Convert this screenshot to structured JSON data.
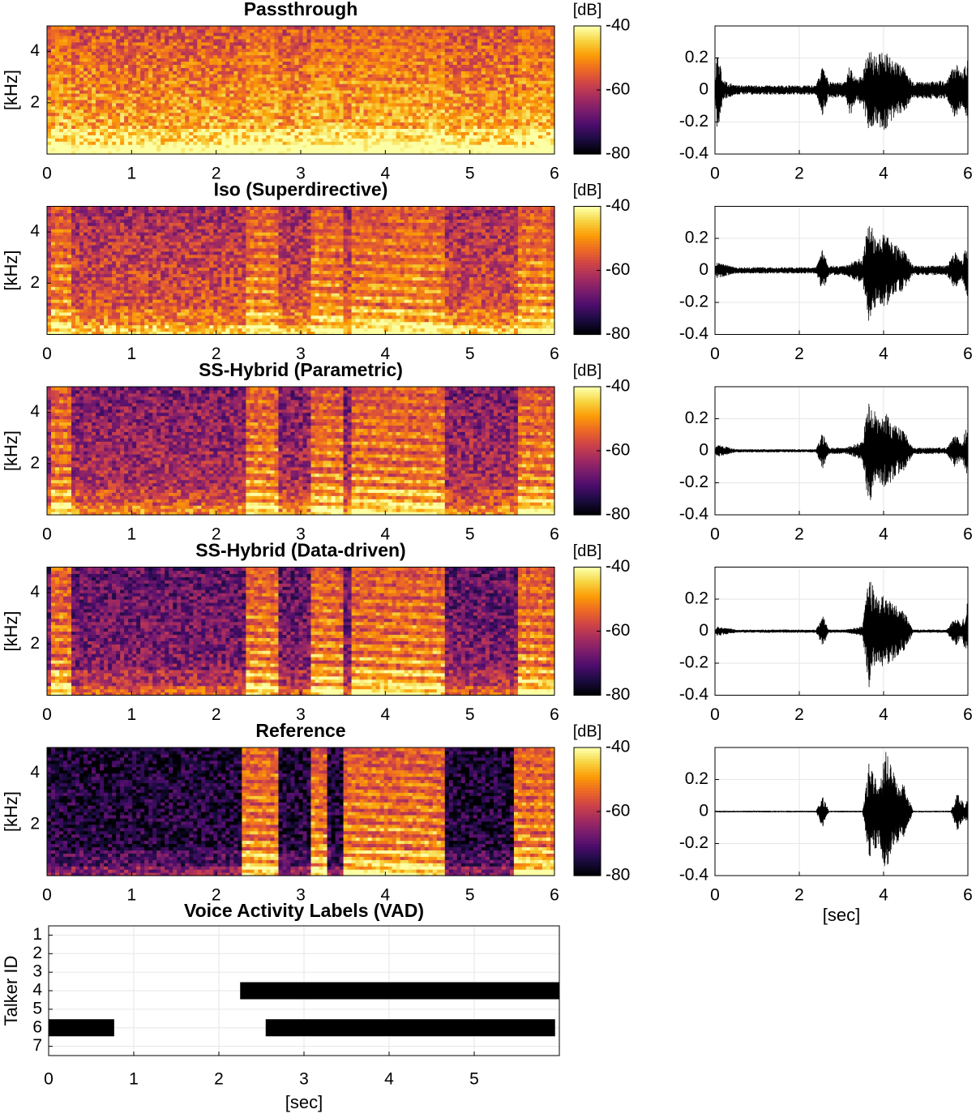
{
  "figure": {
    "colors": {
      "axis": "#000000",
      "grid": "#e6e6e6",
      "vad_bar": "#000000",
      "colormap": [
        "#000004",
        "#1b0c41",
        "#4a0c6b",
        "#781c6d",
        "#a52c60",
        "#cf4446",
        "#ed6925",
        "#fb9b06",
        "#f7d13d",
        "#fcffa4"
      ]
    },
    "x_label": "[sec]",
    "y_label_spec": "[kHz]",
    "colorbar_label": "[dB]"
  },
  "chart_data": [
    {
      "type": "heatmap",
      "title": "Passthrough",
      "xlim": [
        0,
        6
      ],
      "ylim": [
        0,
        5
      ],
      "xticks": [
        0,
        1,
        2,
        3,
        4,
        5,
        6
      ],
      "yticks": [
        2,
        4
      ],
      "xlabel": "",
      "ylabel": "[kHz]",
      "colorbar": {
        "label": "[dB]",
        "range": [
          -80,
          -40
        ],
        "ticks": [
          -40,
          -60,
          -80
        ]
      },
      "speech_segments": [
        [
          0.05,
          0.3
        ],
        [
          2.35,
          2.75
        ],
        [
          3.1,
          3.5
        ],
        [
          3.6,
          4.7
        ],
        [
          5.55,
          6.0
        ]
      ],
      "noise_level": 0.78
    },
    {
      "type": "line",
      "title": "",
      "xlim": [
        0,
        6
      ],
      "ylim": [
        -0.4,
        0.4
      ],
      "xticks": [
        0,
        2,
        4,
        6
      ],
      "yticks": [
        0.2,
        0,
        -0.2,
        -0.4
      ],
      "xlabel": "",
      "ylabel": "",
      "envelope": [
        [
          0.0,
          0.03
        ],
        [
          0.05,
          0.27
        ],
        [
          0.2,
          0.06
        ],
        [
          0.5,
          0.03
        ],
        [
          2.4,
          0.03
        ],
        [
          2.55,
          0.17
        ],
        [
          2.7,
          0.05
        ],
        [
          3.1,
          0.05
        ],
        [
          3.2,
          0.17
        ],
        [
          3.35,
          0.07
        ],
        [
          3.5,
          0.1
        ],
        [
          3.65,
          0.28
        ],
        [
          3.8,
          0.2
        ],
        [
          4.0,
          0.26
        ],
        [
          4.25,
          0.18
        ],
        [
          4.5,
          0.14
        ],
        [
          4.7,
          0.05
        ],
        [
          5.5,
          0.06
        ],
        [
          5.7,
          0.18
        ],
        [
          5.85,
          0.1
        ],
        [
          6.0,
          0.2
        ]
      ]
    },
    {
      "type": "heatmap",
      "title": "Iso (Superdirective)",
      "xlim": [
        0,
        6
      ],
      "ylim": [
        0,
        5
      ],
      "xticks": [
        0,
        1,
        2,
        3,
        4,
        5,
        6
      ],
      "yticks": [
        2,
        4
      ],
      "xlabel": "",
      "ylabel": "[kHz]",
      "colorbar": {
        "label": "[dB]",
        "range": [
          -80,
          -40
        ],
        "ticks": [
          -40,
          -60,
          -80
        ]
      },
      "speech_segments": [
        [
          0.05,
          0.3
        ],
        [
          2.35,
          2.75
        ],
        [
          3.1,
          3.5
        ],
        [
          3.6,
          4.7
        ],
        [
          5.55,
          6.0
        ]
      ],
      "noise_level": 0.58
    },
    {
      "type": "line",
      "title": "",
      "xlim": [
        0,
        6
      ],
      "ylim": [
        -0.4,
        0.4
      ],
      "xticks": [
        0,
        2,
        4,
        6
      ],
      "yticks": [
        0.2,
        0,
        -0.2,
        -0.4
      ],
      "xlabel": "",
      "ylabel": "",
      "envelope": [
        [
          0.0,
          0.02
        ],
        [
          0.05,
          0.05
        ],
        [
          0.5,
          0.02
        ],
        [
          2.4,
          0.02
        ],
        [
          2.55,
          0.13
        ],
        [
          2.7,
          0.03
        ],
        [
          3.1,
          0.03
        ],
        [
          3.3,
          0.06
        ],
        [
          3.5,
          0.08
        ],
        [
          3.65,
          0.34
        ],
        [
          3.85,
          0.2
        ],
        [
          4.05,
          0.24
        ],
        [
          4.3,
          0.16
        ],
        [
          4.5,
          0.12
        ],
        [
          4.7,
          0.03
        ],
        [
          5.5,
          0.03
        ],
        [
          5.7,
          0.12
        ],
        [
          5.85,
          0.06
        ],
        [
          6.0,
          0.18
        ]
      ]
    },
    {
      "type": "heatmap",
      "title": "SS-Hybrid (Parametric)",
      "xlim": [
        0,
        6
      ],
      "ylim": [
        0,
        5
      ],
      "xticks": [
        0,
        1,
        2,
        3,
        4,
        5,
        6
      ],
      "yticks": [
        2,
        4
      ],
      "xlabel": "",
      "ylabel": "[kHz]",
      "colorbar": {
        "label": "[dB]",
        "range": [
          -80,
          -40
        ],
        "ticks": [
          -40,
          -60,
          -80
        ]
      },
      "speech_segments": [
        [
          0.05,
          0.3
        ],
        [
          2.35,
          2.75
        ],
        [
          3.1,
          3.5
        ],
        [
          3.6,
          4.7
        ],
        [
          5.55,
          6.0
        ]
      ],
      "noise_level": 0.45
    },
    {
      "type": "line",
      "title": "",
      "xlim": [
        0,
        6
      ],
      "ylim": [
        -0.4,
        0.4
      ],
      "xticks": [
        0,
        2,
        4,
        6
      ],
      "yticks": [
        0.2,
        0,
        -0.2,
        -0.4
      ],
      "xlabel": "",
      "ylabel": "",
      "envelope": [
        [
          0.0,
          0.01
        ],
        [
          0.05,
          0.04
        ],
        [
          0.5,
          0.01
        ],
        [
          2.4,
          0.01
        ],
        [
          2.55,
          0.12
        ],
        [
          2.7,
          0.02
        ],
        [
          3.1,
          0.02
        ],
        [
          3.3,
          0.04
        ],
        [
          3.5,
          0.06
        ],
        [
          3.65,
          0.35
        ],
        [
          3.85,
          0.2
        ],
        [
          4.05,
          0.24
        ],
        [
          4.3,
          0.16
        ],
        [
          4.5,
          0.12
        ],
        [
          4.7,
          0.02
        ],
        [
          5.5,
          0.02
        ],
        [
          5.7,
          0.11
        ],
        [
          5.85,
          0.05
        ],
        [
          6.0,
          0.18
        ]
      ]
    },
    {
      "type": "heatmap",
      "title": "SS-Hybrid (Data-driven)",
      "xlim": [
        0,
        6
      ],
      "ylim": [
        0,
        5
      ],
      "xticks": [
        0,
        1,
        2,
        3,
        4,
        5,
        6
      ],
      "yticks": [
        2,
        4
      ],
      "xlabel": "",
      "ylabel": "[kHz]",
      "colorbar": {
        "label": "[dB]",
        "range": [
          -80,
          -40
        ],
        "ticks": [
          -40,
          -60,
          -80
        ]
      },
      "speech_segments": [
        [
          0.05,
          0.3
        ],
        [
          2.35,
          2.75
        ],
        [
          3.1,
          3.5
        ],
        [
          3.6,
          4.7
        ],
        [
          5.55,
          6.0
        ]
      ],
      "noise_level": 0.35
    },
    {
      "type": "line",
      "title": "",
      "xlim": [
        0,
        6
      ],
      "ylim": [
        -0.4,
        0.4
      ],
      "xticks": [
        0,
        2,
        4,
        6
      ],
      "yticks": [
        0.2,
        0,
        -0.2,
        -0.4
      ],
      "xlabel": "",
      "ylabel": "",
      "envelope": [
        [
          0.0,
          0.01
        ],
        [
          0.05,
          0.03
        ],
        [
          0.5,
          0.01
        ],
        [
          2.4,
          0.01
        ],
        [
          2.55,
          0.1
        ],
        [
          2.7,
          0.01
        ],
        [
          3.1,
          0.01
        ],
        [
          3.3,
          0.02
        ],
        [
          3.5,
          0.03
        ],
        [
          3.65,
          0.36
        ],
        [
          3.85,
          0.2
        ],
        [
          4.05,
          0.24
        ],
        [
          4.3,
          0.16
        ],
        [
          4.5,
          0.12
        ],
        [
          4.7,
          0.01
        ],
        [
          5.5,
          0.01
        ],
        [
          5.7,
          0.1
        ],
        [
          5.85,
          0.04
        ],
        [
          6.0,
          0.19
        ]
      ]
    },
    {
      "type": "heatmap",
      "title": "Reference",
      "xlim": [
        0,
        6
      ],
      "ylim": [
        0,
        5
      ],
      "xticks": [
        0,
        1,
        2,
        3,
        4,
        5,
        6
      ],
      "yticks": [
        2,
        4
      ],
      "xlabel": "",
      "ylabel": "[kHz]",
      "colorbar": {
        "label": "[dB]",
        "range": [
          -80,
          -40
        ],
        "ticks": [
          -40,
          -60,
          -80
        ]
      },
      "speech_segments": [
        [
          2.3,
          2.75
        ],
        [
          3.1,
          3.3
        ],
        [
          3.5,
          4.7
        ],
        [
          5.5,
          6.0
        ]
      ],
      "noise_level": 0.12
    },
    {
      "type": "line",
      "title": "",
      "xlim": [
        0,
        6
      ],
      "ylim": [
        -0.4,
        0.4
      ],
      "xticks": [
        0,
        2,
        4,
        6
      ],
      "yticks": [
        0.2,
        0,
        -0.2,
        -0.4
      ],
      "xlabel": "[sec]",
      "ylabel": "",
      "envelope": [
        [
          0.0,
          0.005
        ],
        [
          2.4,
          0.005
        ],
        [
          2.55,
          0.1
        ],
        [
          2.7,
          0.005
        ],
        [
          3.5,
          0.005
        ],
        [
          3.65,
          0.3
        ],
        [
          3.9,
          0.2
        ],
        [
          4.05,
          0.38
        ],
        [
          4.3,
          0.2
        ],
        [
          4.5,
          0.16
        ],
        [
          4.7,
          0.005
        ],
        [
          5.6,
          0.005
        ],
        [
          5.75,
          0.12
        ],
        [
          5.9,
          0.05
        ],
        [
          6.0,
          0.08
        ]
      ]
    },
    {
      "type": "bar",
      "title": "Voice Activity Labels (VAD)",
      "xlim": [
        0,
        6
      ],
      "ylim": [
        0.5,
        7.5
      ],
      "xticks": [
        0,
        1,
        2,
        3,
        4,
        5
      ],
      "yticks": [
        1,
        2,
        3,
        4,
        5,
        6,
        7
      ],
      "xlabel": "[sec]",
      "ylabel": "Talker ID",
      "segments": [
        {
          "talker": 4,
          "start": 2.25,
          "end": 6.0
        },
        {
          "talker": 6,
          "start": 0.0,
          "end": 0.77
        },
        {
          "talker": 6,
          "start": 2.55,
          "end": 5.95
        }
      ]
    }
  ]
}
